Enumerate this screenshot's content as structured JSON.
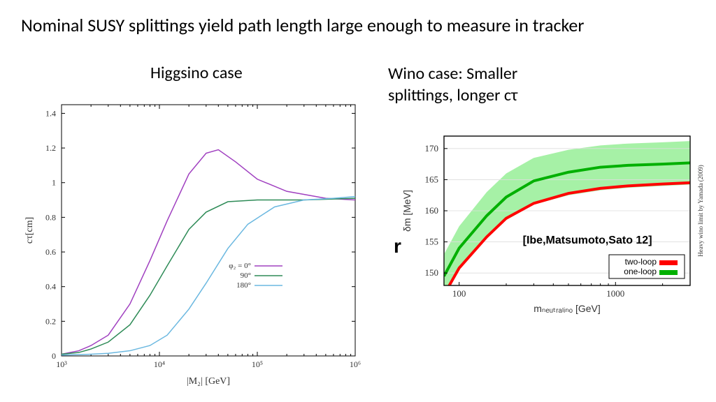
{
  "title": "Nominal SUSY splittings yield path length large enough to measure in tracker",
  "higgsino": {
    "title": "Higgsino case",
    "type": "line",
    "xlabel": "|M₂| [GeV]",
    "ylabel": "cτ[cm]",
    "xscale": "log",
    "yscale": "linear",
    "xlim": [
      1000,
      1000000
    ],
    "ylim": [
      0,
      1.45
    ],
    "xticks": [
      1000,
      10000,
      100000,
      1000000
    ],
    "xtick_labels": [
      "10³",
      "10⁴",
      "10⁵",
      "10⁶"
    ],
    "yticks": [
      0,
      0.2,
      0.4,
      0.6,
      0.8,
      1,
      1.2,
      1.4
    ],
    "grid_color": "#e0e0e0",
    "background_color": "#ffffff",
    "border_color": "#000000",
    "axis_fontsize": 14,
    "tick_fontsize": 12,
    "legend": {
      "title": "φ₂ =",
      "items": [
        {
          "label": "0°",
          "color": "#a040c0"
        },
        {
          "label": "90°",
          "color": "#2e8b57"
        },
        {
          "label": "180°",
          "color": "#6bb8e0"
        }
      ],
      "position": "center-right"
    },
    "series": [
      {
        "color": "#a040c0",
        "linewidth": 1.5,
        "x": [
          1000,
          1500,
          2000,
          3000,
          5000,
          8000,
          12000,
          20000,
          30000,
          40000,
          60000,
          100000,
          200000,
          500000,
          1000000
        ],
        "y": [
          0.01,
          0.03,
          0.06,
          0.12,
          0.3,
          0.55,
          0.78,
          1.05,
          1.17,
          1.19,
          1.12,
          1.02,
          0.95,
          0.91,
          0.9
        ]
      },
      {
        "color": "#2e8b57",
        "linewidth": 1.5,
        "x": [
          1000,
          1500,
          2000,
          3000,
          5000,
          8000,
          12000,
          20000,
          30000,
          50000,
          100000,
          300000,
          1000000
        ],
        "y": [
          0.01,
          0.02,
          0.04,
          0.08,
          0.18,
          0.35,
          0.52,
          0.73,
          0.83,
          0.89,
          0.9,
          0.9,
          0.91
        ]
      },
      {
        "color": "#6bb8e0",
        "linewidth": 1.5,
        "x": [
          1000,
          2000,
          3000,
          5000,
          8000,
          12000,
          20000,
          30000,
          50000,
          80000,
          150000,
          300000,
          600000,
          1000000
        ],
        "y": [
          0.005,
          0.01,
          0.015,
          0.03,
          0.06,
          0.12,
          0.27,
          0.42,
          0.62,
          0.76,
          0.86,
          0.9,
          0.91,
          0.92
        ]
      }
    ]
  },
  "wino": {
    "title": "Wino case: Smaller splittings, longer cτ",
    "type": "line-with-band",
    "xlabel": "m_neutralino [GeV]",
    "ylabel": "δm [MeV]",
    "xscale": "log",
    "yscale": "linear",
    "xlim": [
      80,
      3000
    ],
    "ylim": [
      148,
      172
    ],
    "xticks": [
      100,
      1000
    ],
    "xtick_labels": [
      "100",
      "1000"
    ],
    "yticks": [
      150,
      155,
      160,
      165,
      170
    ],
    "grid_color": "#dddddd",
    "background_color": "#ffffff",
    "border_color": "#000000",
    "citation": "[Ibe,Matsumoto,Sato 12]",
    "side_note": "Heavy wino limit by Yamada (2009)",
    "legend": {
      "items": [
        {
          "label": "two-loop",
          "color": "#ff0000"
        },
        {
          "label": "one-loop",
          "color": "#00b000"
        }
      ]
    },
    "band": {
      "color": "#90ee90",
      "opacity": 0.8,
      "x": [
        80,
        100,
        150,
        200,
        300,
        500,
        800,
        1200,
        2000,
        3000
      ],
      "y_low": [
        146,
        150.5,
        155.5,
        158.5,
        161.0,
        162.5,
        163.3,
        163.7,
        164.0,
        164.2
      ],
      "y_high": [
        153,
        157.5,
        163.0,
        166.0,
        168.5,
        169.8,
        170.5,
        170.8,
        171.0,
        171.2
      ]
    },
    "series": [
      {
        "name": "one-loop",
        "color": "#00b000",
        "linewidth": 4,
        "x": [
          80,
          100,
          150,
          200,
          300,
          500,
          800,
          1200,
          2000,
          3000
        ],
        "y": [
          149.5,
          154,
          159.2,
          162.2,
          164.8,
          166.2,
          167.0,
          167.3,
          167.5,
          167.7
        ]
      },
      {
        "name": "two-loop",
        "color": "#ff0000",
        "linewidth": 4,
        "x": [
          80,
          100,
          150,
          200,
          300,
          500,
          800,
          1200,
          2000,
          3000
        ],
        "y": [
          146.5,
          150.8,
          155.8,
          158.8,
          161.2,
          162.8,
          163.6,
          164.0,
          164.3,
          164.5
        ]
      }
    ]
  }
}
